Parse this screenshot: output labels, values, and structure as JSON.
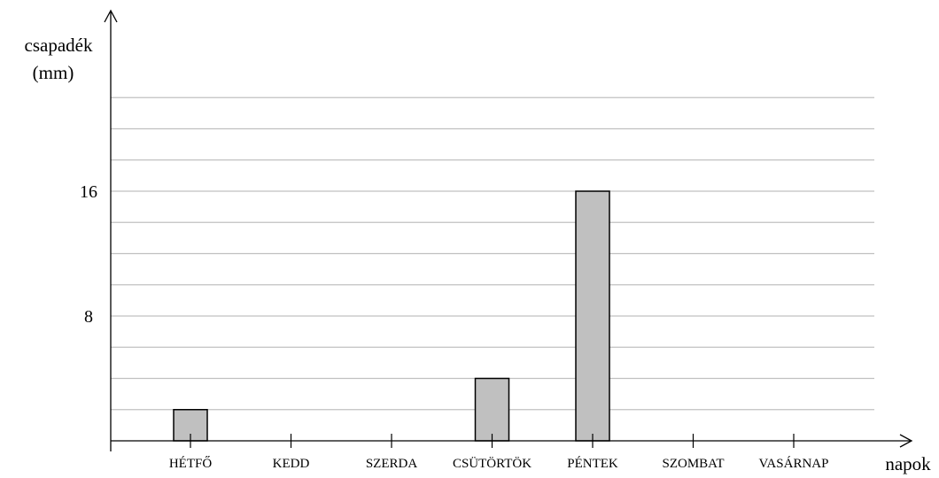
{
  "chart_data": {
    "type": "bar",
    "categories": [
      "HÉTFŐ",
      "KEDD",
      "SZERDA",
      "CSÜTÖRTÖK",
      "PÉNTEK",
      "SZOMBAT",
      "VASÁRNAP"
    ],
    "values": [
      2,
      0,
      0,
      4,
      16,
      0,
      0
    ],
    "ylabel_lines": [
      "csapadék",
      "(mm)"
    ],
    "xlabel": "napok",
    "yticks": [
      8,
      16
    ],
    "ylim": [
      0,
      22
    ],
    "grid_step": 2,
    "grid": true,
    "bar_color": "#c0c0c0"
  }
}
